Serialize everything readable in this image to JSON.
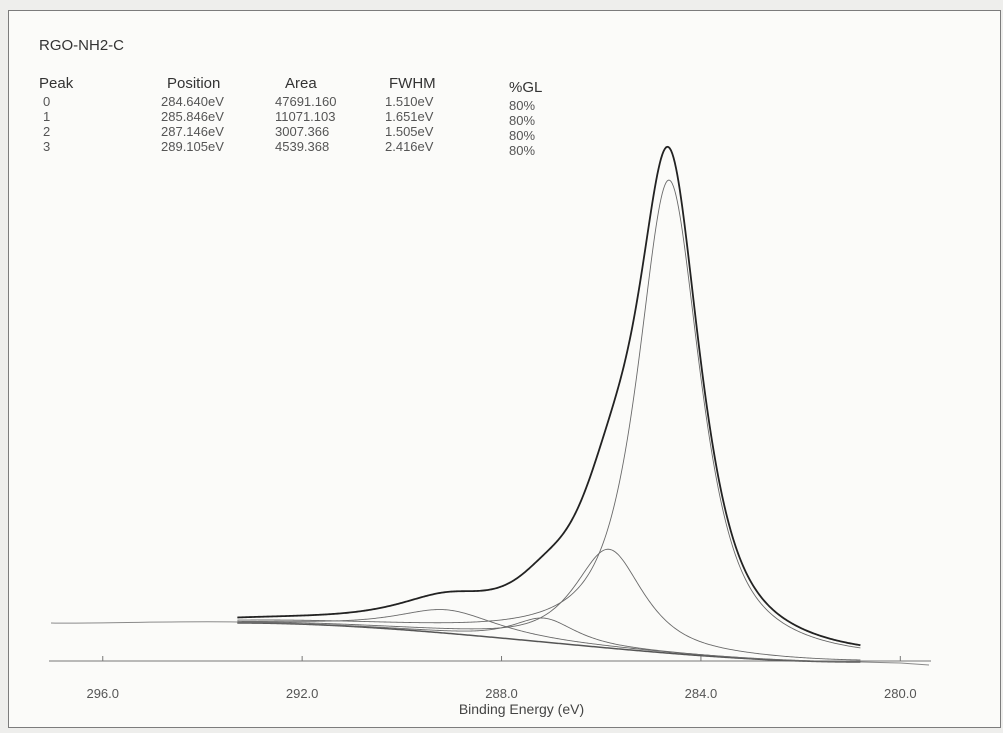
{
  "chart_data": {
    "type": "line",
    "title": "RGO-NH2-C",
    "xlabel": "Binding Energy (eV)",
    "ylabel": "",
    "x_reversed": true,
    "xlim": [
      297.6,
      278.0
    ],
    "xticks": [
      296.0,
      292.0,
      288.0,
      284.0,
      280.0
    ],
    "tick_labels": [
      "296.0",
      "292.0",
      "288.0",
      "284.0",
      "280.0"
    ],
    "data_range": [
      293.3,
      280.8
    ],
    "table": {
      "headers": [
        "Peak",
        "Position",
        "Area",
        "FWHM",
        "%GL"
      ],
      "rows": [
        [
          "0",
          "284.640eV",
          "47691.160",
          "1.510eV",
          "80%"
        ],
        [
          "1",
          "285.846eV",
          "11071.103",
          "1.651eV",
          "80%"
        ],
        [
          "2",
          "287.146eV",
          "3007.366",
          "1.505eV",
          "80%"
        ],
        [
          "3",
          "289.105eV",
          "4539.368",
          "2.416eV",
          "80%"
        ]
      ]
    },
    "peaks": [
      {
        "position": 284.64,
        "area": 47691.16,
        "fwhm": 1.51,
        "gl": 80,
        "height": 0.91
      },
      {
        "position": 285.846,
        "area": 11071.103,
        "fwhm": 1.651,
        "gl": 80,
        "height": 0.19
      },
      {
        "position": 287.146,
        "area": 3007.366,
        "fwhm": 1.505,
        "gl": 80,
        "height": 0.046
      },
      {
        "position": 289.105,
        "area": 4539.368,
        "fwhm": 2.416,
        "gl": 80,
        "height": 0.045
      }
    ],
    "background": {
      "low_be": 280.8,
      "low_level": 0.0,
      "high_be": 293.3,
      "high_level": 0.075
    },
    "colors": {
      "envelope": "#222222",
      "components": "#6a6a6a",
      "background": "#555555",
      "axis": "#777777",
      "stray": "#8a8a8a"
    }
  }
}
